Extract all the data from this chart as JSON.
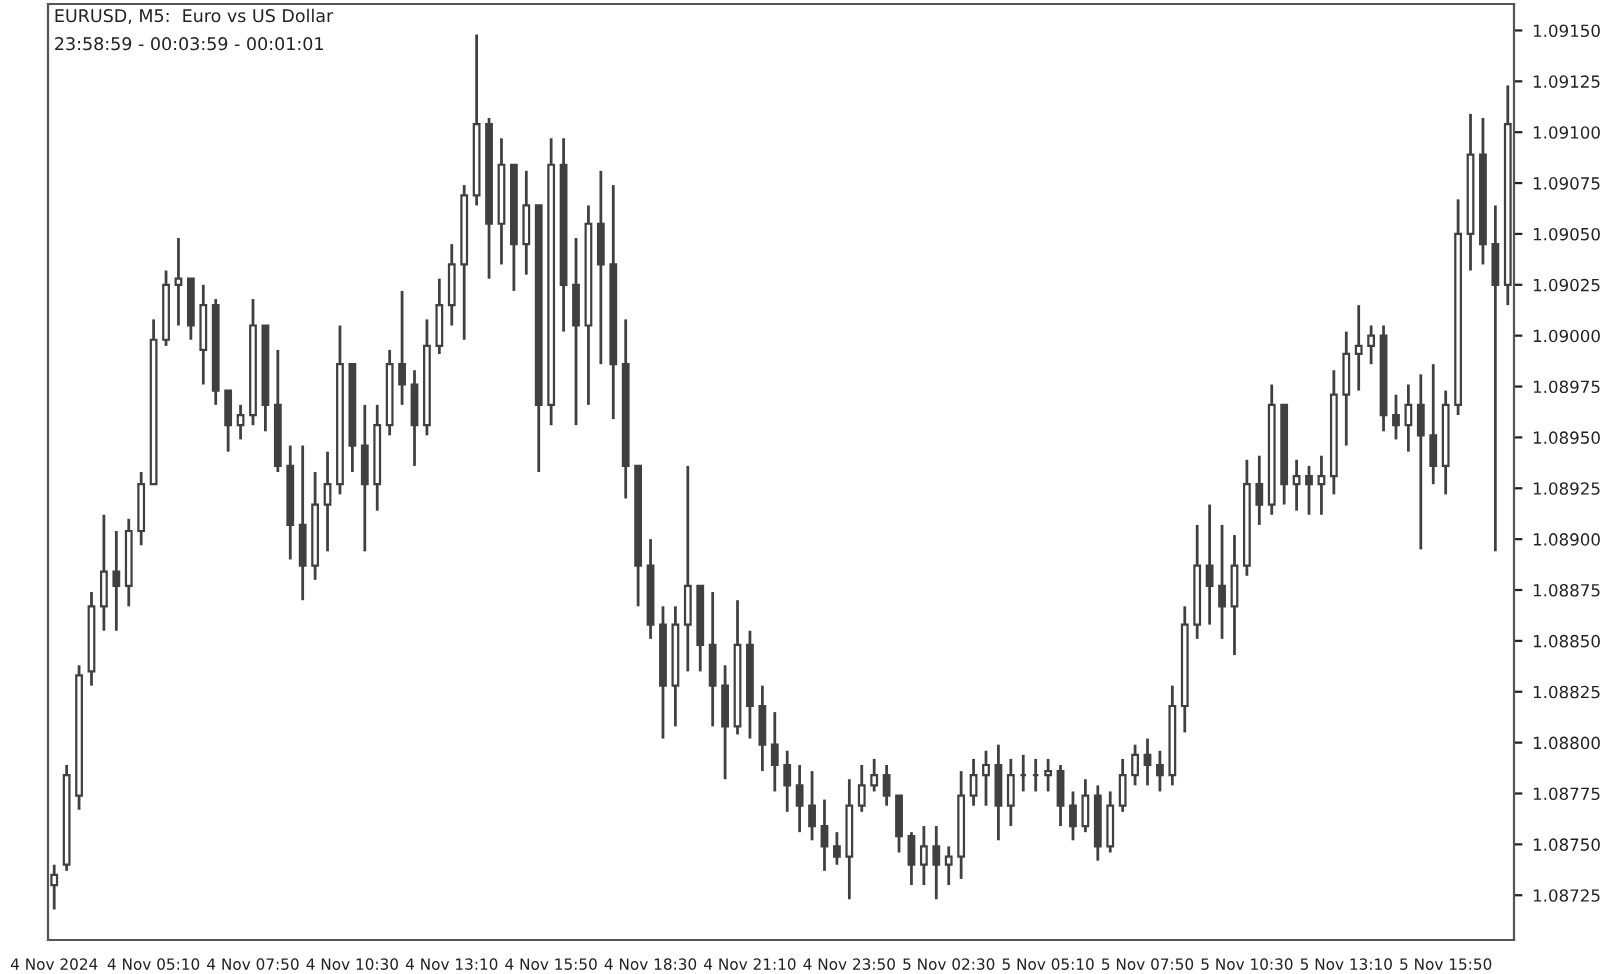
{
  "chart_data": {
    "type": "candlestick",
    "title": "EURUSD, M5:  Euro vs US Dollar",
    "subtitle": "23:58:59 - 00:03:59 - 00:01:01",
    "color": "#404040",
    "x": [
      "2024-11-04T02:30",
      "2024-11-04T02:50",
      "2024-11-04T03:10",
      "2024-11-04T03:30",
      "2024-11-04T03:50",
      "2024-11-04T04:10",
      "2024-11-04T04:30",
      "2024-11-04T04:50",
      "2024-11-04T05:10",
      "2024-11-04T05:30",
      "2024-11-04T05:50",
      "2024-11-04T06:10",
      "2024-11-04T06:30",
      "2024-11-04T06:50",
      "2024-11-04T07:10",
      "2024-11-04T07:30",
      "2024-11-04T07:50",
      "2024-11-04T08:10",
      "2024-11-04T08:30",
      "2024-11-04T08:50",
      "2024-11-04T09:10",
      "2024-11-04T09:30",
      "2024-11-04T09:50",
      "2024-11-04T10:10",
      "2024-11-04T10:30",
      "2024-11-04T10:50",
      "2024-11-04T11:10",
      "2024-11-04T11:30",
      "2024-11-04T11:50",
      "2024-11-04T12:10",
      "2024-11-04T12:30",
      "2024-11-04T12:50",
      "2024-11-04T13:10",
      "2024-11-04T13:30",
      "2024-11-04T13:50",
      "2024-11-04T14:10",
      "2024-11-04T14:30",
      "2024-11-04T14:50",
      "2024-11-04T15:10",
      "2024-11-04T15:30",
      "2024-11-04T15:50",
      "2024-11-04T16:10",
      "2024-11-04T16:30",
      "2024-11-04T16:50",
      "2024-11-04T17:10",
      "2024-11-04T17:30",
      "2024-11-04T17:50",
      "2024-11-04T18:10",
      "2024-11-04T18:30",
      "2024-11-04T18:50",
      "2024-11-04T19:10",
      "2024-11-04T19:30",
      "2024-11-04T19:50",
      "2024-11-04T20:10",
      "2024-11-04T20:30",
      "2024-11-04T20:50",
      "2024-11-04T21:10",
      "2024-11-04T21:30",
      "2024-11-04T21:50",
      "2024-11-04T22:10",
      "2024-11-04T22:30",
      "2024-11-04T22:50",
      "2024-11-04T23:10",
      "2024-11-04T23:30",
      "2024-11-04T23:50",
      "2024-11-05T00:10",
      "2024-11-05T00:30",
      "2024-11-05T00:50",
      "2024-11-05T01:10",
      "2024-11-05T01:30",
      "2024-11-05T01:50",
      "2024-11-05T02:10",
      "2024-11-05T02:30",
      "2024-11-05T02:50",
      "2024-11-05T03:10",
      "2024-11-05T03:30",
      "2024-11-05T03:50",
      "2024-11-05T04:10",
      "2024-11-05T04:30",
      "2024-11-05T04:50",
      "2024-11-05T05:10",
      "2024-11-05T05:30",
      "2024-11-05T05:50",
      "2024-11-05T06:10",
      "2024-11-05T06:30",
      "2024-11-05T06:50",
      "2024-11-05T07:10",
      "2024-11-05T07:30",
      "2024-11-05T07:50",
      "2024-11-05T08:10",
      "2024-11-05T08:30",
      "2024-11-05T08:50",
      "2024-11-05T09:10",
      "2024-11-05T09:30",
      "2024-11-05T09:50",
      "2024-11-05T10:10",
      "2024-11-05T10:30",
      "2024-11-05T10:50",
      "2024-11-05T11:10",
      "2024-11-05T11:30",
      "2024-11-05T11:50",
      "2024-11-05T12:10",
      "2024-11-05T12:30",
      "2024-11-05T12:50",
      "2024-11-05T13:10",
      "2024-11-05T13:30",
      "2024-11-05T13:50",
      "2024-11-05T14:10",
      "2024-11-05T14:30",
      "2024-11-05T14:50",
      "2024-11-05T15:10",
      "2024-11-05T15:30",
      "2024-11-05T15:50",
      "2024-11-05T16:10",
      "2024-11-05T16:30",
      "2024-11-05T16:50",
      "2024-11-05T17:10",
      "2024-11-05T17:30"
    ],
    "ohlc": [
      [
        1.0873,
        1.0874,
        1.08718,
        1.08735
      ],
      [
        1.0874,
        1.08789,
        1.08737,
        1.08784
      ],
      [
        1.08774,
        1.08838,
        1.08767,
        1.08833
      ],
      [
        1.08835,
        1.08874,
        1.08828,
        1.08867
      ],
      [
        1.08867,
        1.08912,
        1.08855,
        1.08884
      ],
      [
        1.08884,
        1.08904,
        1.08855,
        1.08877
      ],
      [
        1.08877,
        1.0891,
        1.08867,
        1.08904
      ],
      [
        1.08904,
        1.08933,
        1.08897,
        1.08927
      ],
      [
        1.08927,
        1.09008,
        1.08927,
        1.08998
      ],
      [
        1.08998,
        1.09032,
        1.08995,
        1.09025
      ],
      [
        1.09025,
        1.09048,
        1.09005,
        1.09028
      ],
      [
        1.09028,
        1.09028,
        1.08998,
        1.09005
      ],
      [
        1.08993,
        1.09025,
        1.08976,
        1.09015
      ],
      [
        1.09015,
        1.09018,
        1.08966,
        1.08973
      ],
      [
        1.08973,
        1.08973,
        1.08943,
        1.08956
      ],
      [
        1.08956,
        1.08966,
        1.08949,
        1.08961
      ],
      [
        1.08961,
        1.09018,
        1.08956,
        1.09005
      ],
      [
        1.09005,
        1.09005,
        1.08953,
        1.08966
      ],
      [
        1.08966,
        1.08993,
        1.08933,
        1.08936
      ],
      [
        1.08936,
        1.08946,
        1.0889,
        1.08907
      ],
      [
        1.08907,
        1.08946,
        1.0887,
        1.08887
      ],
      [
        1.08887,
        1.08933,
        1.0888,
        1.08917
      ],
      [
        1.08917,
        1.08943,
        1.08894,
        1.08927
      ],
      [
        1.08927,
        1.09005,
        1.08922,
        1.08986
      ],
      [
        1.08986,
        1.08986,
        1.08933,
        1.08946
      ],
      [
        1.08946,
        1.08966,
        1.08894,
        1.08927
      ],
      [
        1.08927,
        1.08966,
        1.08914,
        1.08956
      ],
      [
        1.08956,
        1.08993,
        1.08951,
        1.08986
      ],
      [
        1.08986,
        1.09022,
        1.08966,
        1.08976
      ],
      [
        1.08976,
        1.08983,
        1.08936,
        1.08956
      ],
      [
        1.08956,
        1.09008,
        1.08951,
        1.08995
      ],
      [
        1.08995,
        1.09028,
        1.08991,
        1.09015
      ],
      [
        1.09015,
        1.09045,
        1.09005,
        1.09035
      ],
      [
        1.09035,
        1.09074,
        1.08998,
        1.09069
      ],
      [
        1.09069,
        1.09148,
        1.09064,
        1.09104
      ],
      [
        1.09104,
        1.09107,
        1.09028,
        1.09055
      ],
      [
        1.09055,
        1.09097,
        1.09035,
        1.09084
      ],
      [
        1.09084,
        1.09084,
        1.09022,
        1.09045
      ],
      [
        1.09045,
        1.09081,
        1.0903,
        1.09064
      ],
      [
        1.09064,
        1.09064,
        1.08933,
        1.08966
      ],
      [
        1.08966,
        1.09097,
        1.08956,
        1.09084
      ],
      [
        1.09084,
        1.09097,
        1.09002,
        1.09025
      ],
      [
        1.09025,
        1.09048,
        1.08956,
        1.09005
      ],
      [
        1.09005,
        1.09064,
        1.08966,
        1.09055
      ],
      [
        1.09055,
        1.09081,
        1.08986,
        1.09035
      ],
      [
        1.09035,
        1.09074,
        1.08959,
        1.08986
      ],
      [
        1.08986,
        1.09008,
        1.0892,
        1.08936
      ],
      [
        1.08936,
        1.08936,
        1.08867,
        1.08887
      ],
      [
        1.08887,
        1.089,
        1.08851,
        1.08858
      ],
      [
        1.08858,
        1.08867,
        1.08802,
        1.08828
      ],
      [
        1.08828,
        1.08867,
        1.08808,
        1.08858
      ],
      [
        1.08858,
        1.08936,
        1.08835,
        1.08877
      ],
      [
        1.08877,
        1.08877,
        1.08835,
        1.08848
      ],
      [
        1.08848,
        1.08874,
        1.08808,
        1.08828
      ],
      [
        1.08828,
        1.08838,
        1.08782,
        1.08808
      ],
      [
        1.08808,
        1.0887,
        1.08804,
        1.08848
      ],
      [
        1.08848,
        1.08855,
        1.08802,
        1.08818
      ],
      [
        1.08818,
        1.08828,
        1.08786,
        1.08799
      ],
      [
        1.08799,
        1.08815,
        1.08776,
        1.08789
      ],
      [
        1.08789,
        1.08796,
        1.08766,
        1.08779
      ],
      [
        1.08779,
        1.08789,
        1.08756,
        1.08769
      ],
      [
        1.08769,
        1.08786,
        1.08752,
        1.08759
      ],
      [
        1.08759,
        1.08772,
        1.08737,
        1.08749
      ],
      [
        1.08749,
        1.08756,
        1.0874,
        1.08744
      ],
      [
        1.08744,
        1.08782,
        1.08723,
        1.08769
      ],
      [
        1.08769,
        1.08789,
        1.08766,
        1.08779
      ],
      [
        1.08779,
        1.08792,
        1.08776,
        1.08784
      ],
      [
        1.08784,
        1.08789,
        1.08769,
        1.08774
      ],
      [
        1.08774,
        1.08774,
        1.08746,
        1.08754
      ],
      [
        1.08754,
        1.08756,
        1.0873,
        1.0874
      ],
      [
        1.0874,
        1.08759,
        1.0873,
        1.08749
      ],
      [
        1.08749,
        1.08759,
        1.08723,
        1.0874
      ],
      [
        1.0874,
        1.08749,
        1.0873,
        1.08744
      ],
      [
        1.08744,
        1.08786,
        1.08733,
        1.08774
      ],
      [
        1.08774,
        1.08792,
        1.08769,
        1.08784
      ],
      [
        1.08784,
        1.08796,
        1.08769,
        1.08789
      ],
      [
        1.08789,
        1.08799,
        1.08752,
        1.08769
      ],
      [
        1.08769,
        1.08792,
        1.08759,
        1.08784
      ],
      [
        1.08784,
        1.08794,
        1.08776,
        1.08784
      ],
      [
        1.08784,
        1.08792,
        1.08776,
        1.08784
      ],
      [
        1.08784,
        1.08792,
        1.08776,
        1.08786
      ],
      [
        1.08786,
        1.08789,
        1.08759,
        1.08769
      ],
      [
        1.08769,
        1.08776,
        1.08752,
        1.08759
      ],
      [
        1.08759,
        1.08782,
        1.08756,
        1.08774
      ],
      [
        1.08774,
        1.08779,
        1.08742,
        1.08749
      ],
      [
        1.08749,
        1.08776,
        1.08746,
        1.08769
      ],
      [
        1.08769,
        1.08792,
        1.08766,
        1.08784
      ],
      [
        1.08784,
        1.08799,
        1.08779,
        1.08794
      ],
      [
        1.08794,
        1.08802,
        1.08779,
        1.08789
      ],
      [
        1.08789,
        1.08796,
        1.08776,
        1.08784
      ],
      [
        1.08784,
        1.08828,
        1.08779,
        1.08818
      ],
      [
        1.08818,
        1.08867,
        1.08805,
        1.08858
      ],
      [
        1.08858,
        1.08907,
        1.08851,
        1.08887
      ],
      [
        1.08887,
        1.08917,
        1.08858,
        1.08877
      ],
      [
        1.08877,
        1.08907,
        1.08851,
        1.08867
      ],
      [
        1.08867,
        1.08902,
        1.08843,
        1.08887
      ],
      [
        1.08887,
        1.08939,
        1.08882,
        1.08927
      ],
      [
        1.08927,
        1.08941,
        1.08907,
        1.08917
      ],
      [
        1.08917,
        1.08976,
        1.08912,
        1.08966
      ],
      [
        1.08966,
        1.08966,
        1.08917,
        1.08927
      ],
      [
        1.08927,
        1.08939,
        1.08914,
        1.08931
      ],
      [
        1.08931,
        1.08936,
        1.08912,
        1.08927
      ],
      [
        1.08927,
        1.08941,
        1.08912,
        1.08931
      ],
      [
        1.08931,
        1.08983,
        1.08922,
        1.08971
      ],
      [
        1.08971,
        1.09002,
        1.08946,
        1.08991
      ],
      [
        1.08991,
        1.09015,
        1.08973,
        1.08995
      ],
      [
        1.08995,
        1.09005,
        1.08986,
        1.09
      ],
      [
        1.09,
        1.09005,
        1.08953,
        1.08961
      ],
      [
        1.08961,
        1.08971,
        1.08949,
        1.08956
      ],
      [
        1.08956,
        1.08976,
        1.08943,
        1.08966
      ],
      [
        1.08966,
        1.08981,
        1.08895,
        1.08951
      ],
      [
        1.08951,
        1.08986,
        1.08927,
        1.08936
      ],
      [
        1.08936,
        1.08973,
        1.08922,
        1.08966
      ],
      [
        1.08966,
        1.09067,
        1.08961,
        1.0905
      ],
      [
        1.0905,
        1.09109,
        1.09032,
        1.09089
      ],
      [
        1.09089,
        1.09107,
        1.09035,
        1.09045
      ],
      [
        1.09045,
        1.09064,
        1.08894,
        1.09025
      ],
      [
        1.09025,
        1.09123,
        1.09015,
        1.09104
      ]
    ],
    "xlim": [
      "2024-11-04T02:20",
      "2024-11-05T17:40"
    ],
    "xticks": [
      {
        "value": "2024-11-04T02:30",
        "label": "4 Nov 2024"
      },
      {
        "value": "2024-11-04T05:10",
        "label": "4 Nov 05:10"
      },
      {
        "value": "2024-11-04T07:50",
        "label": "4 Nov 07:50"
      },
      {
        "value": "2024-11-04T10:30",
        "label": "4 Nov 10:30"
      },
      {
        "value": "2024-11-04T13:10",
        "label": "4 Nov 13:10"
      },
      {
        "value": "2024-11-04T15:50",
        "label": "4 Nov 15:50"
      },
      {
        "value": "2024-11-04T18:30",
        "label": "4 Nov 18:30"
      },
      {
        "value": "2024-11-04T21:10",
        "label": "4 Nov 21:10"
      },
      {
        "value": "2024-11-04T23:50",
        "label": "4 Nov 23:50"
      },
      {
        "value": "2024-11-05T02:30",
        "label": "5 Nov 02:30"
      },
      {
        "value": "2024-11-05T05:10",
        "label": "5 Nov 05:10"
      },
      {
        "value": "2024-11-05T07:50",
        "label": "5 Nov 07:50"
      },
      {
        "value": "2024-11-05T10:30",
        "label": "5 Nov 10:30"
      },
      {
        "value": "2024-11-05T13:10",
        "label": "5 Nov 13:10"
      },
      {
        "value": "2024-11-05T15:50",
        "label": "5 Nov 15:50"
      }
    ],
    "ylim": [
      1.08703,
      1.09163
    ],
    "yticks": [
      {
        "value": 1.08725,
        "label": "1.08725"
      },
      {
        "value": 1.0875,
        "label": "1.08750"
      },
      {
        "value": 1.08775,
        "label": "1.08775"
      },
      {
        "value": 1.088,
        "label": "1.08800"
      },
      {
        "value": 1.08825,
        "label": "1.08825"
      },
      {
        "value": 1.0885,
        "label": "1.08850"
      },
      {
        "value": 1.08875,
        "label": "1.08875"
      },
      {
        "value": 1.089,
        "label": "1.08900"
      },
      {
        "value": 1.08925,
        "label": "1.08925"
      },
      {
        "value": 1.0895,
        "label": "1.08950"
      },
      {
        "value": 1.08975,
        "label": "1.08975"
      },
      {
        "value": 1.09,
        "label": "1.09000"
      },
      {
        "value": 1.09025,
        "label": "1.09025"
      },
      {
        "value": 1.0905,
        "label": "1.09050"
      },
      {
        "value": 1.09075,
        "label": "1.09075"
      },
      {
        "value": 1.091,
        "label": "1.09100"
      },
      {
        "value": 1.09125,
        "label": "1.09125"
      },
      {
        "value": 1.0915,
        "label": "1.09150"
      }
    ]
  }
}
